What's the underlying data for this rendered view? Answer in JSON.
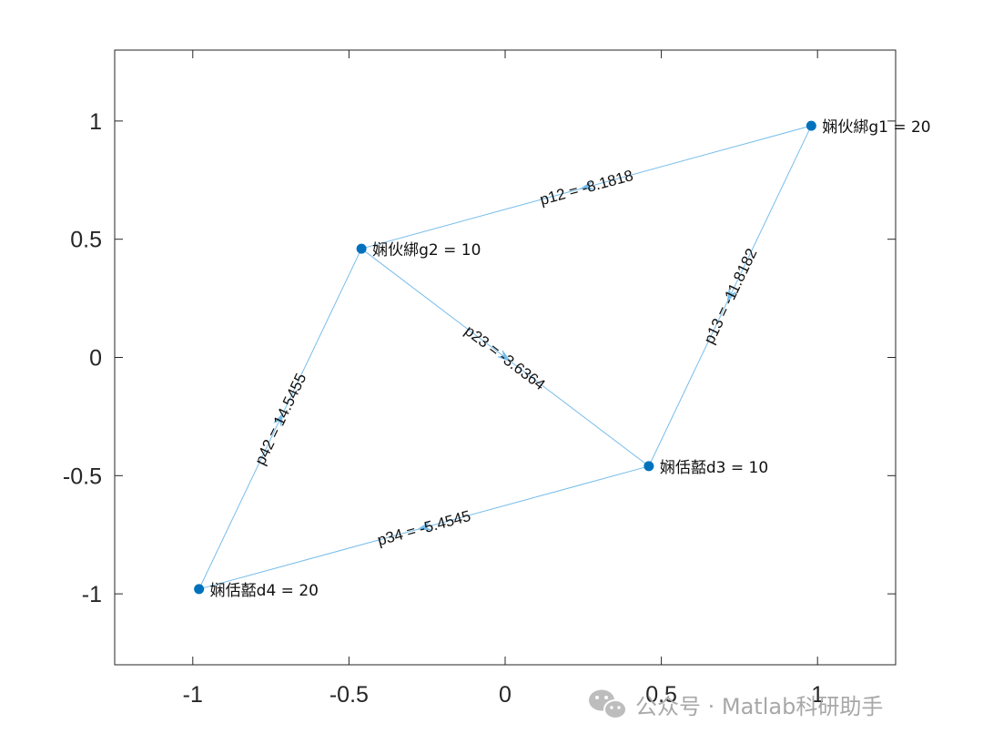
{
  "chart_data": {
    "type": "diagram",
    "xlim": [
      -1.25,
      1.25
    ],
    "ylim": [
      -1.3,
      1.3
    ],
    "x_ticks": [
      {
        "value": -1,
        "label": "-1"
      },
      {
        "value": -0.5,
        "label": "-0.5"
      },
      {
        "value": 0,
        "label": "0"
      },
      {
        "value": 0.5,
        "label": "0.5"
      },
      {
        "value": 1,
        "label": "1"
      }
    ],
    "y_ticks": [
      {
        "value": 1,
        "label": "1"
      },
      {
        "value": 0.5,
        "label": "0.5"
      },
      {
        "value": 0,
        "label": "0"
      },
      {
        "value": -0.5,
        "label": "-0.5"
      },
      {
        "value": -1,
        "label": "-1"
      }
    ],
    "grid": false,
    "node_color": "#0072BD",
    "edge_color": "#77BDEA",
    "nodes": [
      {
        "id": "g1",
        "x": 0.98,
        "y": 0.98,
        "label": "娴伙綁g1 = 20"
      },
      {
        "id": "g2",
        "x": -0.46,
        "y": 0.46,
        "label": "娴伙綁g2 =  10"
      },
      {
        "id": "d3",
        "x": 0.46,
        "y": -0.46,
        "label": "娴佸嚭d3 = 10"
      },
      {
        "id": "d4",
        "x": -0.98,
        "y": -0.98,
        "label": "娴佸嚭d4 = 20"
      }
    ],
    "edges": [
      {
        "from": "g1",
        "to": "g2",
        "label": "p12 = -8.1818"
      },
      {
        "from": "g1",
        "to": "d3",
        "label": "p13 = -11.8182"
      },
      {
        "from": "g2",
        "to": "d3",
        "label": "p23 = -3.6364"
      },
      {
        "from": "d3",
        "to": "d4",
        "label": "p34 = -5.4545"
      },
      {
        "from": "d4",
        "to": "g2",
        "label": "p42 = 14.5455"
      }
    ]
  },
  "watermark": {
    "text": "公众号 · Matlab科研助手",
    "icon": "wechat-icon"
  }
}
